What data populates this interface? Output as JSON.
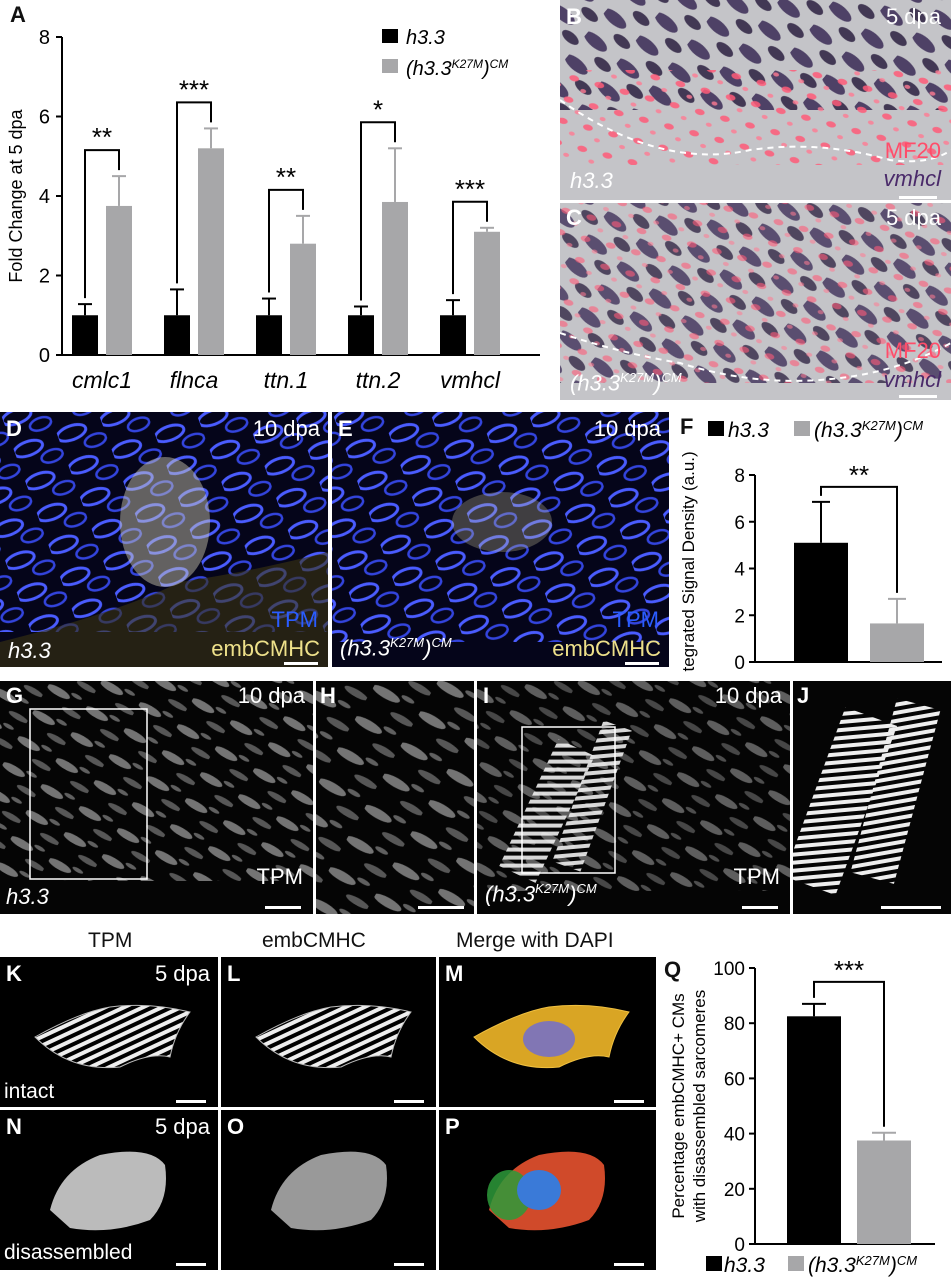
{
  "panel_letters": {
    "A": "A",
    "B": "B",
    "C": "C",
    "D": "D",
    "E": "E",
    "F": "F",
    "G": "G",
    "H": "H",
    "I": "I",
    "J": "J",
    "K": "K",
    "L": "L",
    "M": "M",
    "N": "N",
    "O": "O",
    "P": "P",
    "Q": "Q"
  },
  "timepoints": {
    "five": "5 dpa",
    "ten": "10 dpa"
  },
  "stains": {
    "mf20": "MF20",
    "vmhcl": "vmhcl",
    "tpm": "TPM",
    "embcmhc": "embCMHC",
    "merge": "Merge with DAPI"
  },
  "genotypes": {
    "ctrl": "h3.3",
    "mut_base": "(h3.3",
    "mut_sup": "K27M",
    "mut_close": ")",
    "mut_sub": "CM"
  },
  "states": {
    "intact": "intact",
    "disassembled": "disassembled"
  },
  "colors": {
    "ctrl": "#000000",
    "mut": "#a7a7a9",
    "mf20": "#ff4d6a",
    "vmhcl": "#4a2a6a",
    "tpm": "#2a5cff",
    "embcmhc": "#ede08a"
  },
  "chart_data": [
    {
      "id": "A",
      "type": "bar",
      "ylabel": "Fold Change at 5 dpa",
      "ylim": [
        0,
        8
      ],
      "yticks": [
        0,
        2,
        4,
        6,
        8
      ],
      "categories": [
        "cmlc1",
        "flnca",
        "ttn.1",
        "ttn.2",
        "vmhcl"
      ],
      "series": [
        {
          "name": "h3.3",
          "values": [
            1.0,
            1.0,
            1.0,
            1.0,
            1.0
          ],
          "errors": [
            0.28,
            0.65,
            0.42,
            0.22,
            0.38
          ]
        },
        {
          "name": "(h3.3K27M)CM",
          "values": [
            3.75,
            5.2,
            2.8,
            3.85,
            3.1
          ],
          "errors": [
            0.75,
            0.5,
            0.7,
            1.35,
            0.1
          ]
        }
      ],
      "significance": [
        "**",
        "***",
        "**",
        "*",
        "***"
      ],
      "legend_position": "top-right"
    },
    {
      "id": "F",
      "type": "bar",
      "ylabel": "Integrated Signal Density (a.u.)",
      "ylim": [
        0,
        8
      ],
      "yticks": [
        0,
        2,
        4,
        6,
        8
      ],
      "categories": [
        "h3.3",
        "(h3.3K27M)CM"
      ],
      "values": [
        5.1,
        1.65
      ],
      "errors": [
        1.75,
        1.05
      ],
      "significance": "**",
      "legend_position": "top"
    },
    {
      "id": "Q",
      "type": "bar",
      "ylabel": "Percentage embCMHC+ CMs with disassembled sarcomeres",
      "ylim": [
        0,
        100
      ],
      "yticks": [
        0,
        20,
        40,
        60,
        80,
        100
      ],
      "categories": [
        "h3.3",
        "(h3.3K27M)CM"
      ],
      "values": [
        82.5,
        37.5
      ],
      "errors": [
        4.5,
        2.8
      ],
      "significance": "***",
      "legend_position": "bottom"
    }
  ]
}
